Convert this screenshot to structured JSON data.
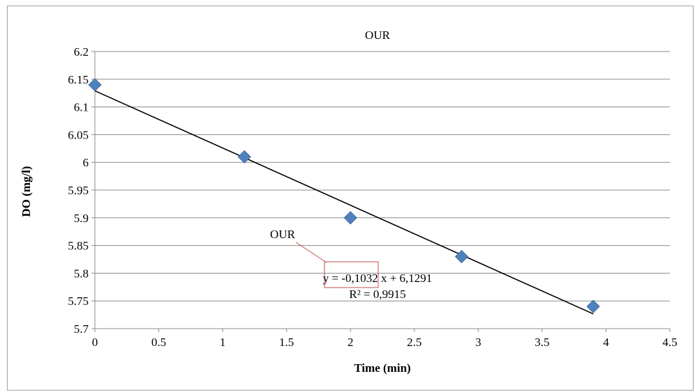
{
  "chart_data": {
    "type": "scatter",
    "title": "OUR",
    "xlabel": "Time (min)",
    "ylabel": "DO (mg/l)",
    "xlim": [
      0,
      4.5
    ],
    "ylim": [
      5.7,
      6.2
    ],
    "x_ticks": [
      "0",
      "0.5",
      "1",
      "1.5",
      "2",
      "2.5",
      "3",
      "3.5",
      "4",
      "4.5"
    ],
    "y_ticks": [
      "5.7",
      "5.75",
      "5.8",
      "5.85",
      "5.9",
      "5.95",
      "6",
      "6.05",
      "6.1",
      "6.15",
      "6.2"
    ],
    "grid": "horizontal",
    "series": [
      {
        "color": "#4f81bd",
        "points": [
          {
            "x": 0,
            "y": 6.14
          },
          {
            "x": 1.17,
            "y": 6.01
          },
          {
            "x": 2.0,
            "y": 5.9
          },
          {
            "x": 2.87,
            "y": 5.83
          },
          {
            "x": 3.9,
            "y": 5.74
          }
        ]
      }
    ],
    "trendline": {
      "x_range": [
        0,
        3.9
      ],
      "slope": -0.1032,
      "intercept": 6.1291,
      "color": "#000000",
      "callout_label": "OUR",
      "equation": "y = -0,1032 x + 6,1291",
      "r_squared": "R² = 0,9915"
    }
  }
}
